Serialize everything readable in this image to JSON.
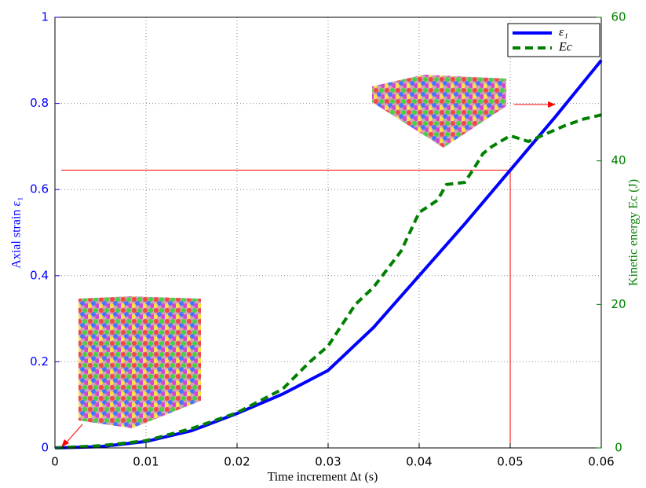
{
  "chart_data": {
    "type": "line",
    "xlabel": "Time increment Δt (s)",
    "ylabel": "Axial strain ε₁",
    "y2label": "Kinetic energy Ec (J)",
    "xlim": [
      0,
      0.06
    ],
    "xticks": [
      0,
      0.01,
      0.02,
      0.03,
      0.04,
      0.05,
      0.06
    ],
    "ylim": [
      0,
      1
    ],
    "yticks": [
      0,
      0.2,
      0.4,
      0.6,
      0.8,
      1
    ],
    "y2lim": [
      0,
      60
    ],
    "y2ticks": [
      0,
      20,
      40,
      60
    ],
    "grid": true,
    "legend": "upper right",
    "series": [
      {
        "name": "ε₁",
        "color": "#0000ff",
        "dash": false,
        "x": [
          0,
          0.005,
          0.01,
          0.015,
          0.02,
          0.025,
          0.03,
          0.035,
          0.04,
          0.045,
          0.05,
          0.055,
          0.06
        ],
        "values": [
          0,
          0.003,
          0.015,
          0.04,
          0.08,
          0.125,
          0.18,
          0.28,
          0.4,
          0.52,
          0.645,
          0.77,
          0.9
        ]
      },
      {
        "name": "Ec",
        "color": "#008000",
        "dash": true,
        "axis": "y2",
        "x": [
          0,
          0.005,
          0.01,
          0.015,
          0.02,
          0.025,
          0.028,
          0.03,
          0.033,
          0.035,
          0.038,
          0.04,
          0.042,
          0.043,
          0.045,
          0.046,
          0.047,
          0.048,
          0.05,
          0.052,
          0.054,
          0.056,
          0.058,
          0.06
        ],
        "values": [
          0,
          0.3,
          1,
          2.7,
          4.9,
          8.2,
          12,
          14.2,
          20,
          22.4,
          27.4,
          32.8,
          34.5,
          36.7,
          37,
          38.9,
          41,
          42,
          43.5,
          42.7,
          43.8,
          44.9,
          45.8,
          46.4
        ]
      }
    ],
    "reference_point": {
      "x": 0.05,
      "y": 0.645,
      "color": "#ff0000"
    }
  }
}
